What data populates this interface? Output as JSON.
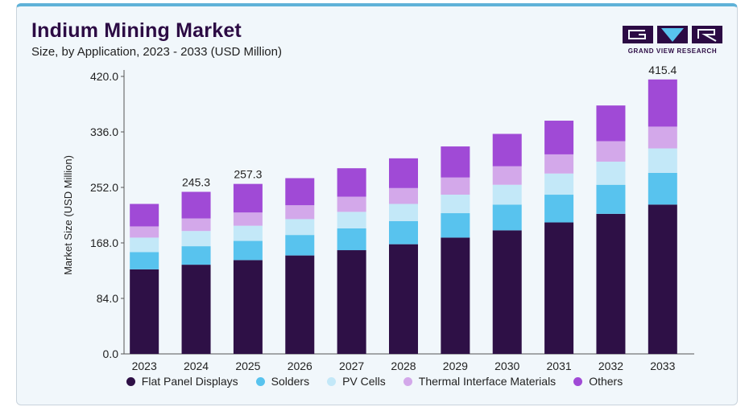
{
  "header": {
    "title": "Indium Mining Market",
    "subtitle": "Size, by Application, 2023 - 2033 (USD Million)"
  },
  "brand": {
    "name": "GRAND VIEW RESEARCH",
    "logo_icon": "gvr-logo-icon",
    "color": "#2c0b44"
  },
  "chart_data": {
    "type": "bar",
    "stacked": true,
    "categories": [
      "2023",
      "2024",
      "2025",
      "2026",
      "2027",
      "2028",
      "2029",
      "2030",
      "2031",
      "2032",
      "2033"
    ],
    "ylabel": "Market Size (USD Million)",
    "xlabel": "",
    "ylim": [
      0,
      420
    ],
    "yticks": [
      "0.0",
      "84.0",
      "168.0",
      "252.0",
      "336.0",
      "420.0"
    ],
    "series": [
      {
        "name": "Flat Panel Displays",
        "color": "#2e1046",
        "values": [
          128,
          135,
          142,
          149,
          157,
          166,
          176,
          187,
          199,
          212,
          226
        ]
      },
      {
        "name": "Solders",
        "color": "#58c3ee",
        "values": [
          26,
          28,
          29,
          31,
          33,
          35,
          37,
          39,
          42,
          44,
          48
        ]
      },
      {
        "name": "PV Cells",
        "color": "#c3e8f8",
        "values": [
          22,
          23,
          23,
          24,
          25,
          26,
          28,
          30,
          32,
          35,
          37
        ]
      },
      {
        "name": "Thermal Interface Materials",
        "color": "#d3a8ea",
        "values": [
          17,
          19,
          20,
          21,
          23,
          24,
          26,
          28,
          29,
          31,
          33
        ]
      },
      {
        "name": "Others",
        "color": "#a04ad6",
        "values": [
          34,
          40.3,
          43.3,
          41,
          43,
          45,
          47,
          49,
          51,
          54,
          71.4
        ]
      }
    ],
    "data_labels": [
      {
        "category": "2024",
        "label": "245.3"
      },
      {
        "category": "2025",
        "label": "257.3"
      },
      {
        "category": "2033",
        "label": "415.4"
      }
    ],
    "legend_position": "bottom",
    "grid": false
  }
}
